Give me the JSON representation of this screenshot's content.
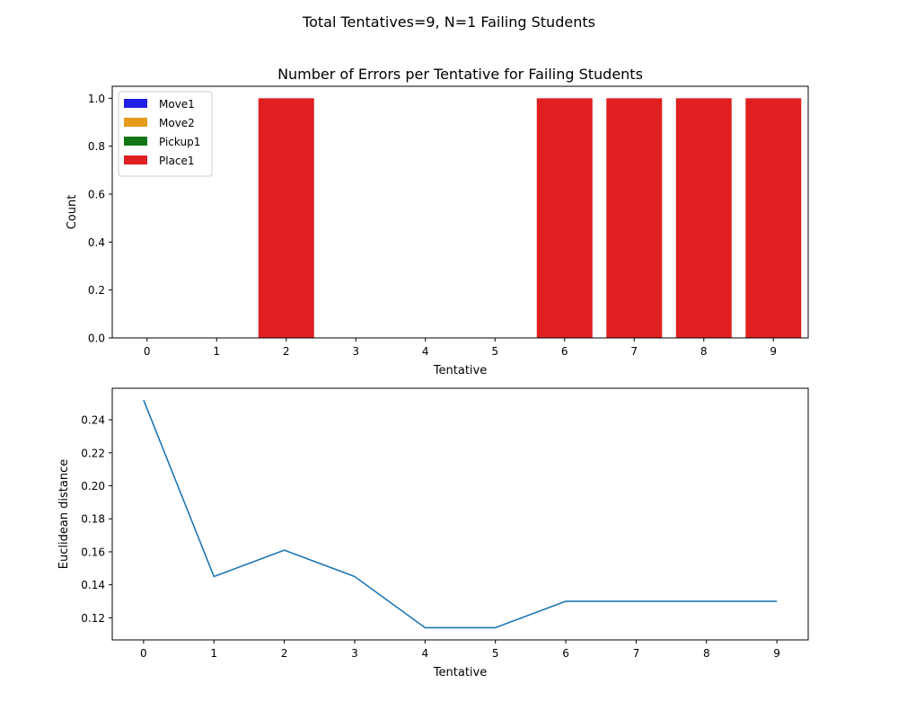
{
  "figure": {
    "suptitle": "Total Tentatives=9, N=1 Failing Students"
  },
  "chart_data": [
    {
      "type": "bar",
      "title": "Number of Errors per Tentative for Failing Students",
      "xlabel": "Tentative",
      "ylabel": "Count",
      "categories": [
        "0",
        "1",
        "2",
        "3",
        "4",
        "5",
        "6",
        "7",
        "8",
        "9"
      ],
      "ylim": [
        0,
        1.05
      ],
      "yticks": [
        "0.0",
        "0.2",
        "0.4",
        "0.6",
        "0.8",
        "1.0"
      ],
      "stacked": true,
      "legend_position": "upper-left",
      "grid": false,
      "series": [
        {
          "name": "Move1",
          "color": "#1f1fe6",
          "values": [
            0,
            0,
            0,
            0,
            0,
            0,
            0,
            0,
            0,
            0
          ]
        },
        {
          "name": "Move2",
          "color": "#e59c1a",
          "values": [
            0,
            0,
            0,
            0,
            0,
            0,
            0,
            0,
            0,
            0
          ]
        },
        {
          "name": "Pickup1",
          "color": "#137513",
          "values": [
            0,
            0,
            0,
            0,
            0,
            0,
            0,
            0,
            0,
            0
          ]
        },
        {
          "name": "Place1",
          "color": "#e02020",
          "values": [
            0,
            0,
            1,
            0,
            0,
            0,
            1,
            1,
            1,
            1
          ]
        }
      ]
    },
    {
      "type": "line",
      "title": "",
      "xlabel": "Tentative",
      "ylabel": "Euclidean distance",
      "x": [
        0,
        1,
        2,
        3,
        4,
        5,
        6,
        7,
        8,
        9
      ],
      "xticks": [
        "0",
        "1",
        "2",
        "3",
        "4",
        "5",
        "6",
        "7",
        "8",
        "9"
      ],
      "ylim": [
        0.1066,
        0.2591
      ],
      "yticks": [
        "0.12",
        "0.14",
        "0.16",
        "0.18",
        "0.20",
        "0.22",
        "0.24"
      ],
      "grid": false,
      "series": [
        {
          "color": "#1f77b4",
          "values": [
            0.252,
            0.145,
            0.161,
            0.145,
            0.114,
            0.114,
            0.13,
            0.13,
            0.13,
            0.13
          ]
        }
      ]
    }
  ]
}
